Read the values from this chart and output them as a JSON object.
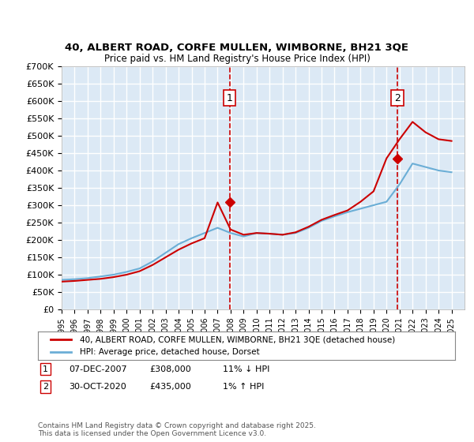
{
  "title_line1": "40, ALBERT ROAD, CORFE MULLEN, WIMBORNE, BH21 3QE",
  "title_line2": "Price paid vs. HM Land Registry's House Price Index (HPI)",
  "ylabel": "",
  "background_color": "#dce9f5",
  "plot_bg_color": "#dce9f5",
  "grid_color": "#ffffff",
  "red_color": "#cc0000",
  "blue_color": "#6baed6",
  "sale1_date_x": 2007.92,
  "sale1_price": 308000,
  "sale1_label": "1",
  "sale2_date_x": 2020.83,
  "sale2_price": 435000,
  "sale2_label": "2",
  "ylim_max": 700000,
  "ylim_min": 0,
  "xlim_min": 1995,
  "xlim_max": 2026,
  "legend_line1": "40, ALBERT ROAD, CORFE MULLEN, WIMBORNE, BH21 3QE (detached house)",
  "legend_line2": "HPI: Average price, detached house, Dorset",
  "note1": "1    07-DEC-2007         £308,000         11% ↓ HPI",
  "note2": "2    30-OCT-2020         £435,000           1% ↑ HPI",
  "footer": "Contains HM Land Registry data © Crown copyright and database right 2025.\nThis data is licensed under the Open Government Licence v3.0.",
  "hpi_years": [
    1995,
    1996,
    1997,
    1998,
    1999,
    2000,
    2001,
    2002,
    2003,
    2004,
    2005,
    2006,
    2007,
    2008,
    2009,
    2010,
    2011,
    2012,
    2013,
    2014,
    2015,
    2016,
    2017,
    2018,
    2019,
    2020,
    2021,
    2022,
    2023,
    2024,
    2025
  ],
  "hpi_values": [
    85000,
    87000,
    90000,
    95000,
    100000,
    108000,
    118000,
    138000,
    163000,
    188000,
    205000,
    220000,
    235000,
    220000,
    210000,
    220000,
    218000,
    215000,
    220000,
    235000,
    255000,
    268000,
    280000,
    290000,
    300000,
    310000,
    360000,
    420000,
    410000,
    400000,
    395000
  ],
  "red_years": [
    1995,
    1996,
    1997,
    1998,
    1999,
    2000,
    2001,
    2002,
    2003,
    2004,
    2005,
    2006,
    2007,
    2008,
    2009,
    2010,
    2011,
    2012,
    2013,
    2014,
    2015,
    2016,
    2017,
    2018,
    2019,
    2020,
    2021,
    2022,
    2023,
    2024,
    2025
  ],
  "red_values": [
    80000,
    82000,
    85000,
    88000,
    93000,
    100000,
    110000,
    128000,
    150000,
    172000,
    190000,
    205000,
    308000,
    230000,
    215000,
    220000,
    218000,
    215000,
    222000,
    238000,
    258000,
    272000,
    285000,
    310000,
    340000,
    435000,
    490000,
    540000,
    510000,
    490000,
    485000
  ]
}
